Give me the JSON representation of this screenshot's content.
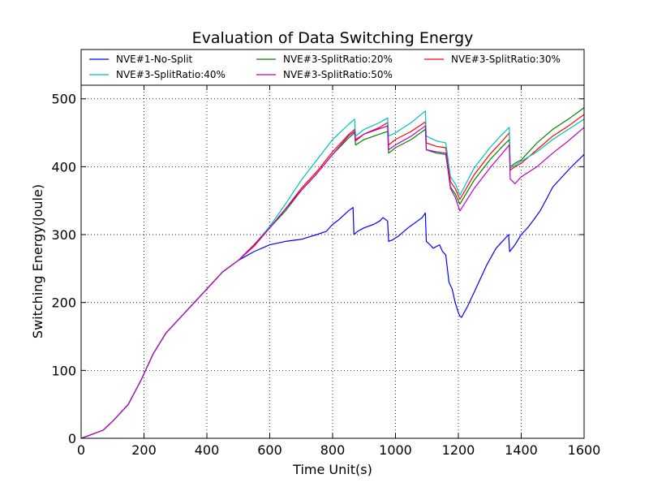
{
  "chart_data": {
    "type": "line",
    "title": "Evaluation of Data Switching Energy",
    "xlabel": "Time Unit(s)",
    "ylabel": "Switching Energy(Joule)",
    "xlim": [
      0,
      1600
    ],
    "ylim": [
      0,
      520
    ],
    "xticks": [
      0,
      200,
      400,
      600,
      800,
      1000,
      1200,
      1400,
      1600
    ],
    "yticks": [
      0,
      100,
      200,
      300,
      400,
      500
    ],
    "grid": true,
    "legend_position": "top",
    "series": [
      {
        "name": "NVE#1-No-Split",
        "color": "#0000ff",
        "x": [
          0,
          30,
          70,
          100,
          150,
          190,
          230,
          270,
          320,
          380,
          450,
          500,
          550,
          600,
          650,
          700,
          750,
          780,
          800,
          820,
          850,
          865,
          868,
          880,
          900,
          930,
          950,
          960,
          975,
          978,
          990,
          1010,
          1040,
          1070,
          1085,
          1095,
          1098,
          1110,
          1120,
          1140,
          1150,
          1160,
          1170,
          1180,
          1190,
          1200,
          1205,
          1210,
          1230,
          1260,
          1290,
          1320,
          1360,
          1363,
          1380,
          1400,
          1420,
          1440,
          1460,
          1480,
          1500,
          1530,
          1560,
          1600
        ],
        "y": [
          0,
          5,
          12,
          25,
          50,
          85,
          125,
          155,
          180,
          210,
          245,
          262,
          275,
          285,
          290,
          293,
          300,
          305,
          315,
          322,
          335,
          340,
          300,
          305,
          310,
          315,
          320,
          325,
          320,
          290,
          292,
          298,
          310,
          320,
          325,
          332,
          290,
          285,
          280,
          285,
          275,
          270,
          230,
          220,
          200,
          185,
          180,
          178,
          195,
          225,
          255,
          280,
          300,
          275,
          285,
          300,
          310,
          322,
          335,
          352,
          370,
          385,
          400,
          418
        ]
      },
      {
        "name": "NVE#3-SplitRatio:20%",
        "color": "#008000",
        "x": [
          0,
          30,
          70,
          100,
          150,
          190,
          230,
          270,
          320,
          380,
          450,
          500,
          550,
          600,
          650,
          700,
          750,
          800,
          850,
          870,
          873,
          900,
          950,
          975,
          978,
          1000,
          1050,
          1095,
          1098,
          1130,
          1160,
          1175,
          1190,
          1205,
          1250,
          1300,
          1340,
          1362,
          1365,
          1380,
          1400,
          1450,
          1500,
          1550,
          1600
        ],
        "y": [
          0,
          5,
          12,
          25,
          50,
          85,
          125,
          155,
          180,
          210,
          245,
          262,
          283,
          310,
          335,
          365,
          390,
          418,
          442,
          450,
          432,
          440,
          448,
          452,
          420,
          428,
          440,
          455,
          425,
          420,
          418,
          370,
          360,
          345,
          380,
          410,
          430,
          440,
          400,
          405,
          410,
          435,
          455,
          470,
          487
        ]
      },
      {
        "name": "NVE#3-SplitRatio:30%",
        "color": "#ff0000",
        "x": [
          0,
          30,
          70,
          100,
          150,
          190,
          230,
          270,
          320,
          380,
          450,
          500,
          550,
          600,
          650,
          700,
          750,
          800,
          850,
          870,
          873,
          900,
          950,
          975,
          978,
          1000,
          1050,
          1095,
          1098,
          1130,
          1160,
          1175,
          1190,
          1205,
          1250,
          1300,
          1340,
          1362,
          1365,
          1380,
          1400,
          1450,
          1500,
          1550,
          1600
        ],
        "y": [
          0,
          5,
          12,
          25,
          50,
          85,
          125,
          155,
          180,
          210,
          245,
          262,
          283,
          310,
          338,
          368,
          393,
          422,
          447,
          455,
          438,
          448,
          458,
          465,
          432,
          440,
          452,
          466,
          435,
          430,
          428,
          378,
          368,
          352,
          388,
          418,
          438,
          450,
          395,
          400,
          405,
          425,
          445,
          460,
          477
        ]
      },
      {
        "name": "NVE#3-SplitRatio:40%",
        "color": "#00bfbf",
        "x": [
          0,
          30,
          70,
          100,
          150,
          190,
          230,
          270,
          320,
          380,
          450,
          500,
          550,
          600,
          650,
          700,
          750,
          800,
          850,
          870,
          873,
          900,
          950,
          975,
          978,
          1000,
          1050,
          1095,
          1098,
          1130,
          1160,
          1175,
          1190,
          1205,
          1250,
          1300,
          1340,
          1362,
          1365,
          1380,
          1400,
          1450,
          1500,
          1550,
          1600
        ],
        "y": [
          0,
          5,
          12,
          25,
          50,
          85,
          125,
          155,
          180,
          210,
          245,
          262,
          285,
          312,
          345,
          380,
          410,
          440,
          462,
          470,
          445,
          455,
          465,
          472,
          445,
          450,
          465,
          482,
          445,
          438,
          435,
          385,
          375,
          358,
          398,
          428,
          448,
          458,
          398,
          402,
          408,
          422,
          440,
          455,
          470
        ]
      },
      {
        "name": "NVE#3-SplitRatio:50%",
        "color": "#bf00bf",
        "x": [
          0,
          30,
          70,
          100,
          150,
          190,
          230,
          270,
          320,
          380,
          450,
          500,
          550,
          600,
          650,
          700,
          750,
          800,
          850,
          870,
          873,
          900,
          950,
          975,
          978,
          1000,
          1050,
          1095,
          1098,
          1130,
          1160,
          1175,
          1190,
          1205,
          1250,
          1300,
          1340,
          1362,
          1365,
          1380,
          1400,
          1450,
          1500,
          1550,
          1600
        ],
        "y": [
          0,
          5,
          12,
          25,
          50,
          85,
          125,
          155,
          180,
          210,
          245,
          262,
          285,
          310,
          338,
          365,
          390,
          418,
          445,
          452,
          440,
          448,
          456,
          460,
          425,
          432,
          445,
          460,
          425,
          422,
          420,
          368,
          355,
          335,
          368,
          398,
          420,
          432,
          382,
          375,
          385,
          400,
          420,
          438,
          458
        ]
      }
    ]
  }
}
